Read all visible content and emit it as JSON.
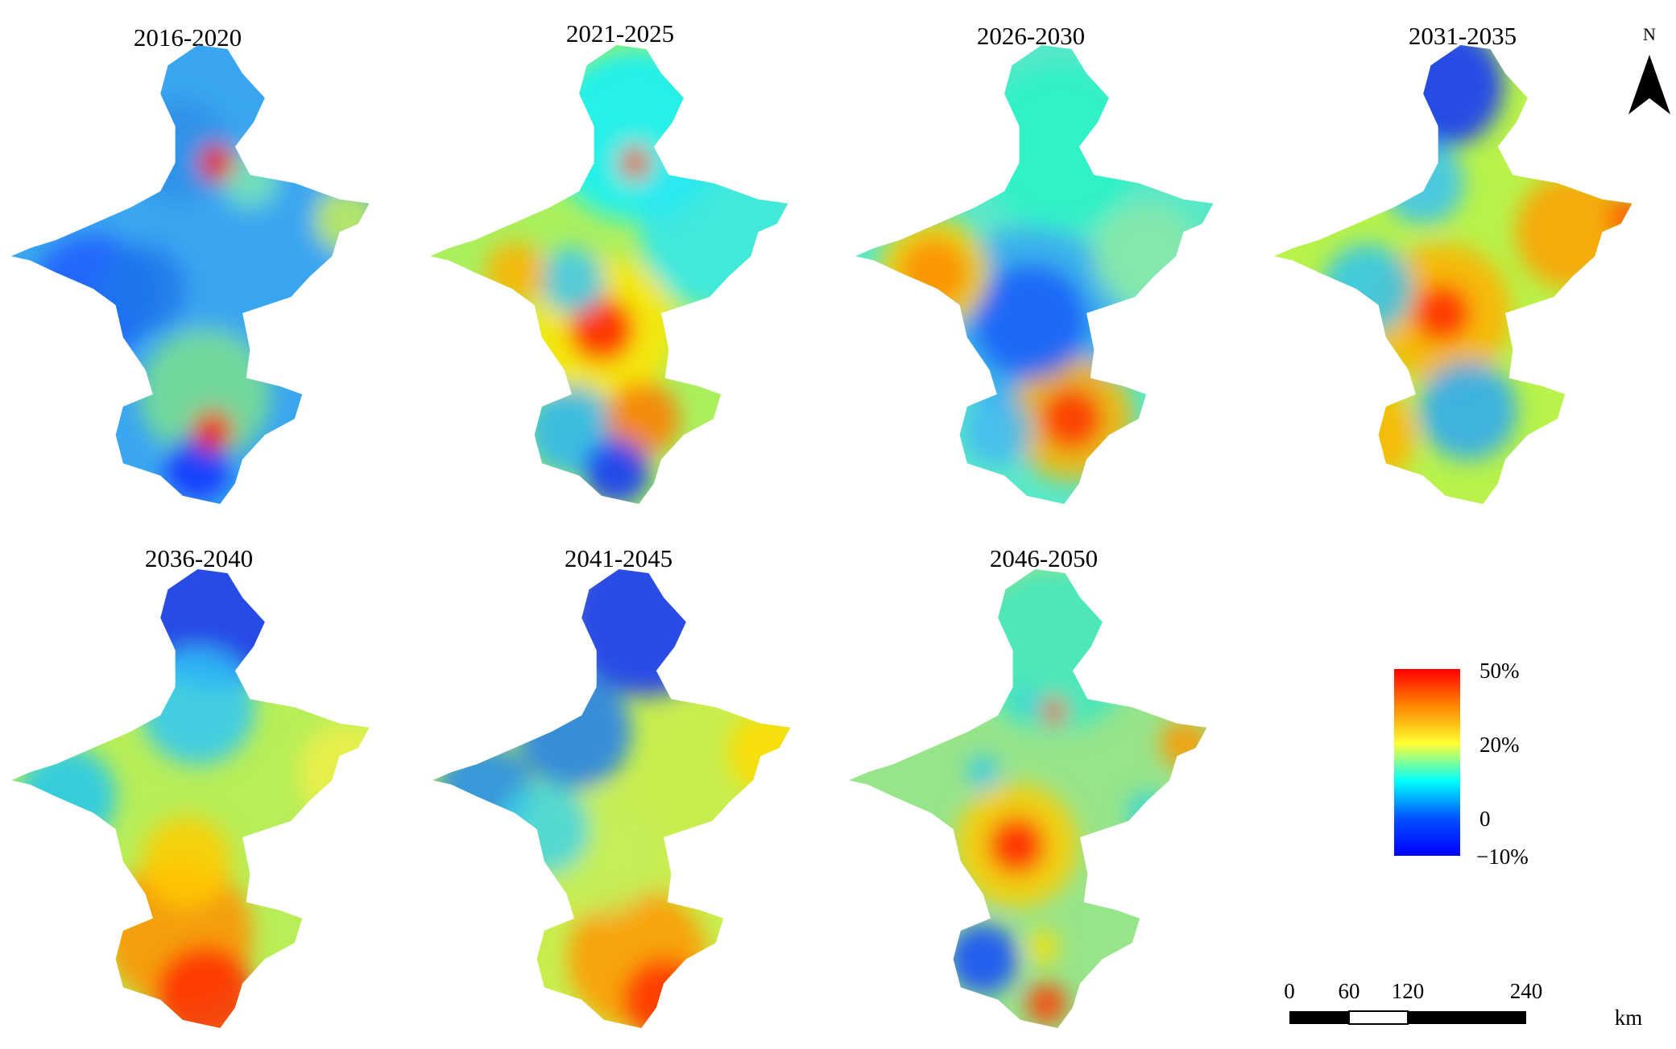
{
  "panels": [
    {
      "title": "2016-2020",
      "base": "#3aa6f0",
      "blobs": [
        [
          0.22,
          0.62,
          0.3,
          "#1d5cff"
        ],
        [
          0.62,
          0.47,
          0.55,
          "#3aa6f0"
        ],
        [
          0.55,
          0.29,
          0.09,
          "#ff1a00"
        ],
        [
          0.45,
          0.26,
          0.25,
          "#2f8fe8"
        ],
        [
          0.9,
          0.43,
          0.16,
          "#c8ee55"
        ],
        [
          0.52,
          0.86,
          0.32,
          "#7de08e"
        ],
        [
          0.35,
          0.6,
          0.22,
          "#1f78ea"
        ],
        [
          0.54,
          0.95,
          0.1,
          "#ff1a00"
        ],
        [
          0.5,
          1.04,
          0.16,
          "#1030ff"
        ],
        [
          0.64,
          0.33,
          0.14,
          "#79e8b5"
        ]
      ]
    },
    {
      "title": "2021-2025",
      "base": "#aaf05e",
      "blobs": [
        [
          0.55,
          0.22,
          0.42,
          "#08f0ff"
        ],
        [
          0.78,
          0.45,
          0.4,
          "#2de8f2"
        ],
        [
          0.46,
          0.7,
          0.16,
          "#ff1a00"
        ],
        [
          0.46,
          0.7,
          0.36,
          "#ffe600"
        ],
        [
          0.23,
          0.56,
          0.15,
          "#ffb000"
        ],
        [
          0.38,
          0.58,
          0.16,
          "#38c8f8"
        ],
        [
          0.55,
          0.29,
          0.08,
          "#ff4a00"
        ],
        [
          0.57,
          0.92,
          0.18,
          "#ff7a00"
        ],
        [
          0.38,
          0.95,
          0.22,
          "#2bb4f5"
        ],
        [
          0.5,
          1.05,
          0.16,
          "#1030ff"
        ]
      ]
    },
    {
      "title": "2026-2030",
      "base": "#58e8c8",
      "blobs": [
        [
          0.55,
          0.25,
          0.4,
          "#2af2c6"
        ],
        [
          0.47,
          0.68,
          0.28,
          "#1a5ef8"
        ],
        [
          0.47,
          0.68,
          0.46,
          "#36a8f2"
        ],
        [
          0.21,
          0.56,
          0.17,
          "#ff8c00"
        ],
        [
          0.21,
          0.56,
          0.27,
          "#ffd200"
        ],
        [
          0.58,
          0.92,
          0.15,
          "#ff3000"
        ],
        [
          0.58,
          0.92,
          0.3,
          "#ffb400"
        ],
        [
          0.38,
          0.95,
          0.17,
          "#45b8f5"
        ],
        [
          0.78,
          0.52,
          0.26,
          "#8ce8a8"
        ]
      ]
    },
    {
      "title": "2031-2035",
      "base": "#b8f24a",
      "blobs": [
        [
          0.45,
          0.1,
          0.3,
          "#1230ff"
        ],
        [
          0.4,
          0.34,
          0.2,
          "#38c2f8"
        ],
        [
          0.45,
          0.66,
          0.14,
          "#ff2800"
        ],
        [
          0.45,
          0.66,
          0.34,
          "#ffb000"
        ],
        [
          0.8,
          0.46,
          0.28,
          "#ffa000"
        ],
        [
          0.25,
          0.6,
          0.22,
          "#2ec4f2"
        ],
        [
          0.52,
          0.9,
          0.24,
          "#28a8f8"
        ],
        [
          0.25,
          0.96,
          0.24,
          "#ffb400"
        ],
        [
          0.95,
          0.42,
          0.1,
          "#ff5000"
        ]
      ]
    },
    {
      "title": "2036-2040",
      "base": "#b8ee58",
      "blobs": [
        [
          0.55,
          0.1,
          0.38,
          "#1030ff"
        ],
        [
          0.5,
          0.34,
          0.28,
          "#2ec8f8"
        ],
        [
          0.15,
          0.56,
          0.24,
          "#20c8f2"
        ],
        [
          0.45,
          0.9,
          0.36,
          "#ff9000"
        ],
        [
          0.52,
          1.05,
          0.24,
          "#ff2c00"
        ],
        [
          0.47,
          0.72,
          0.22,
          "#ffcc00"
        ],
        [
          0.9,
          0.5,
          0.24,
          "#eef04a"
        ]
      ]
    },
    {
      "title": "2041-2045",
      "base": "#c8ee4e",
      "blobs": [
        [
          0.57,
          0.12,
          0.38,
          "#1030ff"
        ],
        [
          0.38,
          0.4,
          0.28,
          "#1c7cf0"
        ],
        [
          0.14,
          0.55,
          0.24,
          "#1c88f0"
        ],
        [
          0.3,
          0.64,
          0.22,
          "#42d6e6"
        ],
        [
          0.55,
          0.96,
          0.34,
          "#ff9800"
        ],
        [
          0.62,
          1.06,
          0.2,
          "#ff3000"
        ],
        [
          0.9,
          0.45,
          0.2,
          "#ffdc00"
        ],
        [
          0.45,
          0.7,
          0.3,
          "#c4ee5a"
        ]
      ]
    },
    {
      "title": "2046-2050",
      "base": "#98e48a",
      "blobs": [
        [
          0.55,
          0.2,
          0.4,
          "#3ee8c2"
        ],
        [
          0.55,
          0.35,
          0.06,
          "#ff1800"
        ],
        [
          0.48,
          0.33,
          0.05,
          "#30c4f0"
        ],
        [
          0.45,
          0.68,
          0.14,
          "#ff1e00"
        ],
        [
          0.45,
          0.68,
          0.3,
          "#ffcc00"
        ],
        [
          0.9,
          0.43,
          0.12,
          "#ff9800"
        ],
        [
          0.36,
          0.5,
          0.08,
          "#2ec8ee"
        ],
        [
          0.8,
          0.6,
          0.1,
          "#2ed6e0"
        ],
        [
          0.36,
          0.96,
          0.17,
          "#1048ff"
        ],
        [
          0.53,
          1.07,
          0.1,
          "#ff3a00"
        ],
        [
          0.52,
          0.93,
          0.08,
          "#ffe000"
        ]
      ]
    }
  ],
  "legend": {
    "ticks": [
      "50%",
      "20%",
      "0",
      "−10%"
    ],
    "colors": [
      "#ff0000",
      "#ff8800",
      "#ffff33",
      "#00ffff",
      "#0050ff",
      "#0000ff"
    ]
  },
  "scale_bar": {
    "labels": [
      "0",
      "60",
      "120",
      "240"
    ],
    "unit": "km"
  },
  "north_arrow": {
    "label": "N"
  }
}
